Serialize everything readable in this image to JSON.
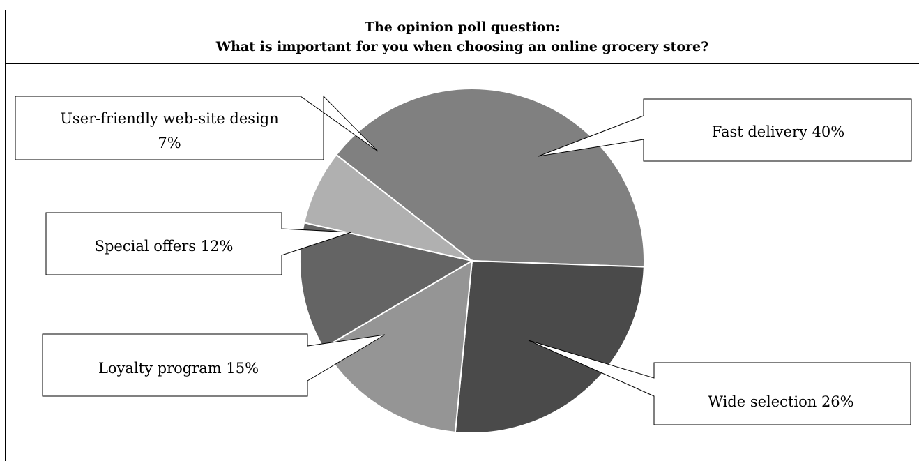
{
  "title_line1": "The opinion poll question:",
  "title_line2": "What is important for you when choosing an online grocery store?",
  "chart_data": {
    "type": "pie",
    "title": "The opinion poll question: What is important for you when choosing an online grocery store?",
    "slices": [
      {
        "label": "Fast delivery",
        "value": 40,
        "text": "Fast delivery 40%",
        "color": "#808080"
      },
      {
        "label": "Wide selection",
        "value": 26,
        "text": "Wide selection 26%",
        "color": "#4a4a4a"
      },
      {
        "label": "Loyalty program",
        "value": 15,
        "text": "Loyalty program 15%",
        "color": "#959595"
      },
      {
        "label": "Special offers",
        "value": 12,
        "text": "Special offers 12%",
        "color": "#646464"
      },
      {
        "label": "User-friendly web-site design",
        "value": 7,
        "text": "User-friendly web-site design 7%",
        "text_line1": "User-friendly web-site design",
        "text_line2": "7%",
        "color": "#b0b0b0"
      }
    ]
  }
}
